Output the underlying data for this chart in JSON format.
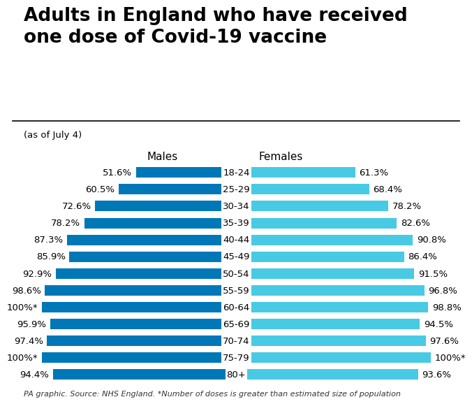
{
  "title": "Adults in England who have received\none dose of Covid-19 vaccine",
  "subtitle": "(as of July 4)",
  "footer": "PA graphic. Source: NHS England. *Number of doses is greater than estimated size of population",
  "age_groups": [
    "18-24",
    "25-29",
    "30-34",
    "35-39",
    "40-44",
    "45-49",
    "50-54",
    "55-59",
    "60-64",
    "65-69",
    "70-74",
    "75-79",
    "80+"
  ],
  "male_values": [
    51.6,
    60.5,
    72.6,
    78.2,
    87.3,
    85.9,
    92.9,
    98.6,
    100.0,
    95.9,
    97.4,
    100.0,
    94.4
  ],
  "female_values": [
    61.3,
    68.4,
    78.2,
    82.6,
    90.8,
    86.4,
    91.5,
    96.8,
    98.8,
    94.5,
    97.6,
    100.0,
    93.6
  ],
  "male_labels": [
    "51.6%",
    "60.5%",
    "72.6%",
    "78.2%",
    "87.3%",
    "85.9%",
    "92.9%",
    "98.6%",
    "100%*",
    "95.9%",
    "97.4%",
    "100%*",
    "94.4%"
  ],
  "female_labels": [
    "61.3%",
    "68.4%",
    "78.2%",
    "82.6%",
    "90.8%",
    "86.4%",
    "91.5%",
    "96.8%",
    "98.8%",
    "94.5%",
    "97.6%",
    "100%*",
    "93.6%"
  ],
  "male_color": "#0077b6",
  "female_color": "#48cae4",
  "male_header": "Males",
  "female_header": "Females",
  "background_color": "#ffffff",
  "title_fontsize": 19,
  "label_fontsize": 9.5,
  "header_fontsize": 11
}
